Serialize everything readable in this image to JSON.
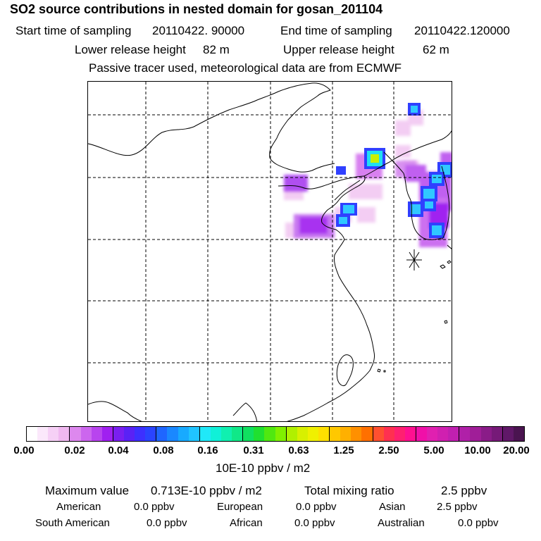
{
  "title": "SO2 source contributions in nested domain for gosan_201104",
  "sampling": {
    "start_label": "Start time of sampling",
    "start_value": "20110422. 90000",
    "end_label": "End time of sampling",
    "end_value": "20110422.120000"
  },
  "release": {
    "lower_label": "Lower release height",
    "lower_value": "82 m",
    "upper_label": "Upper release height",
    "upper_value": "62 m"
  },
  "tracer_note": "Passive tracer used, meteorological data are from ECMWF",
  "map": {
    "receptor_marker": "asterisk-marker",
    "plume_colors": {
      "light": "#f2c8f2",
      "medium": "#d66cf0",
      "purple": "#a020f0",
      "blue": "#3040ff",
      "cyan": "#30c8ff",
      "yellow_green": "#c8f000"
    }
  },
  "colorbar": {
    "colors": [
      "#ffffff",
      "#fbe8fb",
      "#f6d0f6",
      "#f0b8f0",
      "#dd88ee",
      "#cc66ee",
      "#b844ee",
      "#a020f0",
      "#7a1ff0",
      "#5a22f5",
      "#3d30ff",
      "#2a44ff",
      "#1f66ff",
      "#1a88ff",
      "#18aaff",
      "#20c4ff",
      "#20e8f8",
      "#10f0d8",
      "#10f0b0",
      "#10e888",
      "#10e060",
      "#20e030",
      "#50e810",
      "#80f000",
      "#b0f000",
      "#d8f000",
      "#f0f000",
      "#ffe000",
      "#ffc800",
      "#ffb000",
      "#ff9000",
      "#ff7000",
      "#ff5030",
      "#ff3050",
      "#ff2070",
      "#ff1090",
      "#f010a8",
      "#e020b0",
      "#d020b0",
      "#c020b0",
      "#b020a8",
      "#a01e98",
      "#8a1c88",
      "#761a78",
      "#601868",
      "#4a1450"
    ],
    "tick_labels": [
      "0.00",
      "0.02",
      "0.04",
      "0.08",
      "0.16",
      "0.31",
      "0.63",
      "1.25",
      "2.50",
      "5.00",
      "10.00",
      "20.00"
    ],
    "units": "10E-10 ppbv / m2"
  },
  "stats": {
    "max_label": "Maximum value",
    "max_value": "0.713E-10 ppbv / m2",
    "total_label": "Total mixing ratio",
    "total_value": "2.5 ppbv",
    "american_label": "American",
    "american_value": "0.0 ppbv",
    "european_label": "European",
    "european_value": "0.0 ppbv",
    "asian_label": "Asian",
    "asian_value": "2.5 ppbv",
    "south_american_label": "South American",
    "south_american_value": "0.0 ppbv",
    "african_label": "African",
    "african_value": "0.0 ppbv",
    "australian_label": "Australian",
    "australian_value": "0.0 ppbv"
  }
}
